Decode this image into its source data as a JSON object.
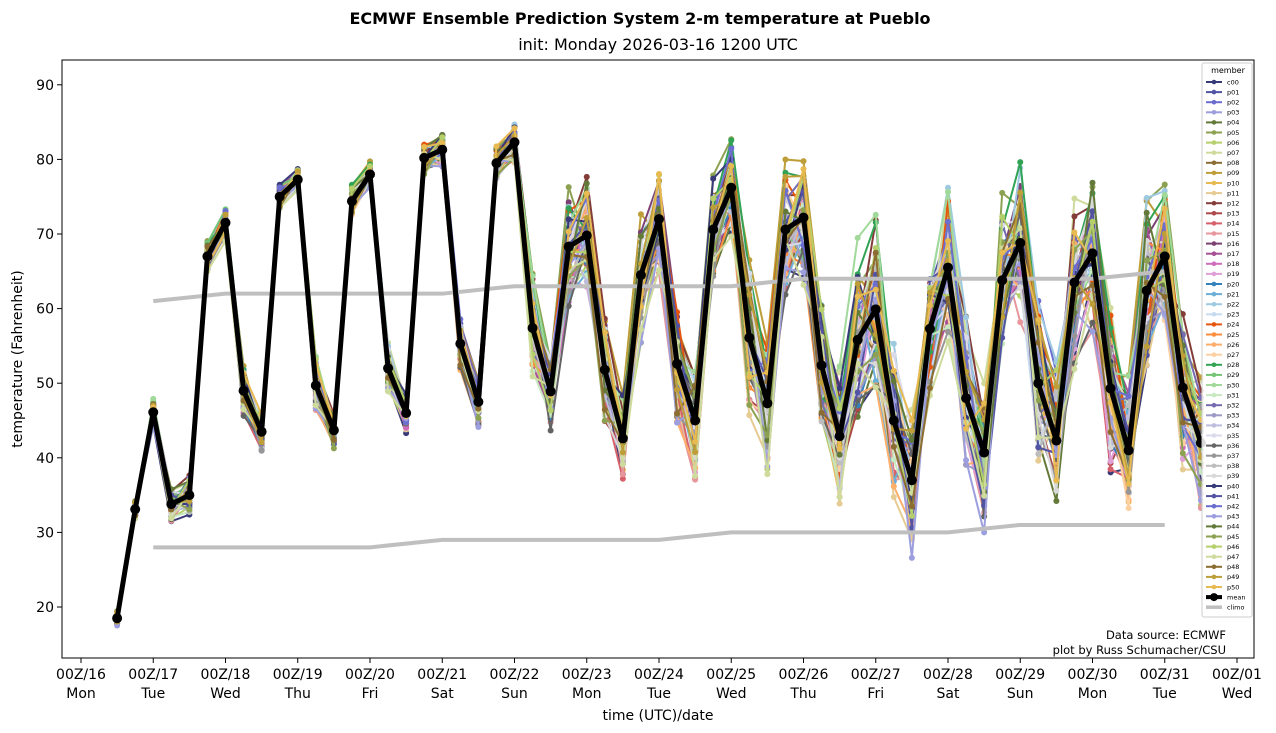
{
  "chart_data": {
    "type": "line",
    "title": "ECMWF Ensemble Prediction System 2-m temperature at Pueblo",
    "subtitle": "init: Monday 2026-03-16 1200 UTC",
    "xlabel": "time (UTC)/date",
    "ylabel": "temperature (Fahrenheit)",
    "ylim": [
      13.2,
      93.4
    ],
    "xlim_days": [
      -0.3,
      16.3
    ],
    "x_unit": "days since 00Z/16",
    "grid": false,
    "legend_title": "member",
    "legend_position": "top-right",
    "yticks": [
      20,
      30,
      40,
      50,
      60,
      70,
      80,
      90
    ],
    "xticks": [
      {
        "day": 0,
        "label1": "00Z/16",
        "label2": "Mon"
      },
      {
        "day": 1,
        "label1": "00Z/17",
        "label2": "Tue"
      },
      {
        "day": 2,
        "label1": "00Z/18",
        "label2": "Wed"
      },
      {
        "day": 3,
        "label1": "00Z/19",
        "label2": "Thu"
      },
      {
        "day": 4,
        "label1": "00Z/20",
        "label2": "Fri"
      },
      {
        "day": 5,
        "label1": "00Z/21",
        "label2": "Sat"
      },
      {
        "day": 6,
        "label1": "00Z/22",
        "label2": "Sun"
      },
      {
        "day": 7,
        "label1": "00Z/23",
        "label2": "Mon"
      },
      {
        "day": 8,
        "label1": "00Z/24",
        "label2": "Tue"
      },
      {
        "day": 9,
        "label1": "00Z/25",
        "label2": "Wed"
      },
      {
        "day": 10,
        "label1": "00Z/26",
        "label2": "Thu"
      },
      {
        "day": 11,
        "label1": "00Z/27",
        "label2": "Fri"
      },
      {
        "day": 12,
        "label1": "00Z/28",
        "label2": "Sat"
      },
      {
        "day": 13,
        "label1": "00Z/29",
        "label2": "Sun"
      },
      {
        "day": 14,
        "label1": "00Z/30",
        "label2": "Mon"
      },
      {
        "day": 15,
        "label1": "00Z/31",
        "label2": "Tue"
      },
      {
        "day": 16,
        "label1": "00Z/01",
        "label2": "Wed"
      }
    ],
    "time_start_day": 0.5,
    "time_step_days": 0.25,
    "mean": {
      "name": "mean",
      "color": "#000000",
      "values": [
        18.5,
        33.1,
        46.1,
        33.8,
        35.0,
        67.0,
        71.5,
        49.0,
        43.5,
        75.0,
        77.3,
        49.7,
        43.7,
        74.4,
        78.0,
        52.0,
        46.0,
        80.2,
        81.3,
        55.3,
        47.5,
        79.5,
        82.3,
        57.4,
        48.9,
        68.3,
        69.8,
        51.8,
        42.6,
        64.5,
        72.0,
        52.6,
        45.0,
        70.6,
        76.2,
        56.1,
        47.3,
        70.6,
        72.2,
        52.4,
        42.9,
        55.8,
        59.9,
        45.0,
        37.0,
        57.3,
        65.5,
        48.0,
        40.7,
        63.8,
        68.8,
        50.0,
        42.3,
        63.5,
        67.4,
        49.3,
        41.0,
        62.4,
        67.0,
        49.4,
        42.0
      ]
    },
    "ensemble_spread_F": [
      1.0,
      1.5,
      2.0,
      2.5,
      3.0,
      2.5,
      2.5,
      4.0,
      3.5,
      2.0,
      2.0,
      4.5,
      3.0,
      2.5,
      2.0,
      4.0,
      3.0,
      2.5,
      2.5,
      4.5,
      4.0,
      3.0,
      3.0,
      8.0,
      6.0,
      10.0,
      9.0,
      9.0,
      7.0,
      10.0,
      8.0,
      10.0,
      9.0,
      9.0,
      7.0,
      12.0,
      10.0,
      11.0,
      10.0,
      12.0,
      11.0,
      15.0,
      14.0,
      12.0,
      11.0,
      12.0,
      12.0,
      12.0,
      11.0,
      13.0,
      12.0,
      13.0,
      12.0,
      13.0,
      12.0,
      13.0,
      12.0,
      14.0,
      12.0,
      12.0,
      10.0
    ],
    "climo_high": {
      "name": "climo",
      "color": "#bfbfbf",
      "days": [
        1,
        2,
        5,
        6,
        9,
        10,
        14,
        15
      ],
      "values": [
        61,
        62,
        62,
        63,
        63,
        64,
        64,
        65
      ]
    },
    "climo_low": {
      "name": "climo",
      "color": "#bfbfbf",
      "days": [
        1,
        4,
        5,
        8,
        9,
        12,
        13,
        15
      ],
      "values": [
        28,
        28,
        29,
        29,
        30,
        30,
        31,
        31
      ]
    },
    "members": [
      {
        "name": "c00",
        "color": "#393b79"
      },
      {
        "name": "p01",
        "color": "#5254a3"
      },
      {
        "name": "p02",
        "color": "#6b6ecf"
      },
      {
        "name": "p03",
        "color": "#9c9ede"
      },
      {
        "name": "p04",
        "color": "#637939"
      },
      {
        "name": "p05",
        "color": "#8ca252"
      },
      {
        "name": "p06",
        "color": "#b5cf6b"
      },
      {
        "name": "p07",
        "color": "#cedb9c"
      },
      {
        "name": "p08",
        "color": "#8c6d31"
      },
      {
        "name": "p09",
        "color": "#bd9e39"
      },
      {
        "name": "p10",
        "color": "#e7ba52"
      },
      {
        "name": "p11",
        "color": "#e7cb94"
      },
      {
        "name": "p12",
        "color": "#843c39"
      },
      {
        "name": "p13",
        "color": "#ad494a"
      },
      {
        "name": "p14",
        "color": "#d6616b"
      },
      {
        "name": "p15",
        "color": "#e7969c"
      },
      {
        "name": "p16",
        "color": "#7b4173"
      },
      {
        "name": "p17",
        "color": "#a55194"
      },
      {
        "name": "p18",
        "color": "#ce6dbd"
      },
      {
        "name": "p19",
        "color": "#de9ed6"
      },
      {
        "name": "p20",
        "color": "#3182bd"
      },
      {
        "name": "p21",
        "color": "#6baed6"
      },
      {
        "name": "p22",
        "color": "#9ecae1"
      },
      {
        "name": "p23",
        "color": "#c6dbef"
      },
      {
        "name": "p24",
        "color": "#e6550d"
      },
      {
        "name": "p25",
        "color": "#fd8d3c"
      },
      {
        "name": "p26",
        "color": "#fdae6b"
      },
      {
        "name": "p27",
        "color": "#fdd0a2"
      },
      {
        "name": "p28",
        "color": "#31a354"
      },
      {
        "name": "p29",
        "color": "#74c476"
      },
      {
        "name": "p30",
        "color": "#a1d99b"
      },
      {
        "name": "p31",
        "color": "#c7e9c0"
      },
      {
        "name": "p32",
        "color": "#756bb1"
      },
      {
        "name": "p33",
        "color": "#9e9ac8"
      },
      {
        "name": "p34",
        "color": "#bcbddc"
      },
      {
        "name": "p35",
        "color": "#dadaeb"
      },
      {
        "name": "p36",
        "color": "#636363"
      },
      {
        "name": "p37",
        "color": "#969696"
      },
      {
        "name": "p38",
        "color": "#bdbdbd"
      },
      {
        "name": "p39",
        "color": "#d9d9d9"
      },
      {
        "name": "p40",
        "color": "#393b79"
      },
      {
        "name": "p41",
        "color": "#5254a3"
      },
      {
        "name": "p42",
        "color": "#6b6ecf"
      },
      {
        "name": "p43",
        "color": "#9c9ede"
      },
      {
        "name": "p44",
        "color": "#637939"
      },
      {
        "name": "p45",
        "color": "#8ca252"
      },
      {
        "name": "p46",
        "color": "#b5cf6b"
      },
      {
        "name": "p47",
        "color": "#cedb9c"
      },
      {
        "name": "p48",
        "color": "#8c6d31"
      },
      {
        "name": "p49",
        "color": "#bd9e39"
      },
      {
        "name": "p50",
        "color": "#e7ba52"
      }
    ],
    "annotations": [
      "Data source: ECMWF",
      "plot by Russ Schumacher/CSU"
    ]
  }
}
